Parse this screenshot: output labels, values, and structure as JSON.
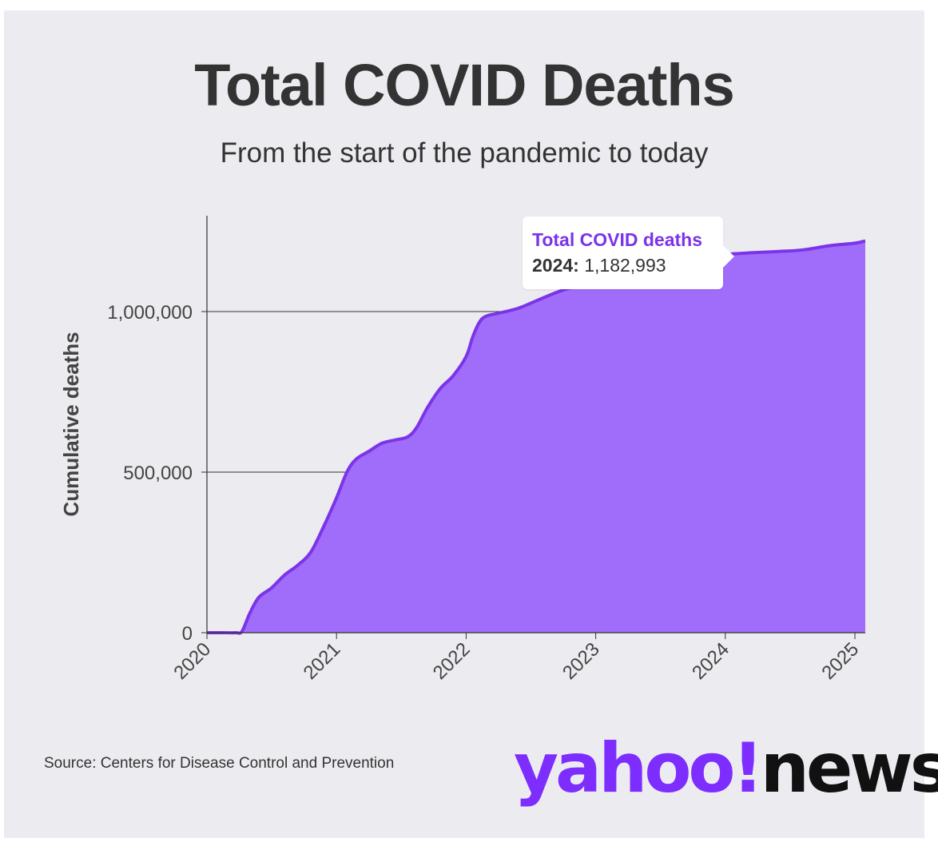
{
  "header": {
    "title": "Total COVID Deaths",
    "subtitle": "From the start of the pandemic to today"
  },
  "tooltip": {
    "series": "Total COVID deaths",
    "year": "2024:",
    "value": "1,182,993"
  },
  "footer": {
    "source": "Source: Centers for Disease Control and Prevention",
    "logo_yahoo": "yahoo!",
    "logo_news": "news"
  },
  "colors": {
    "fill": "#a06cfa",
    "line": "#7c34e8",
    "background": "#ececf0",
    "text": "#333333"
  },
  "chart_data": {
    "type": "area",
    "title": "Total COVID Deaths",
    "subtitle": "From the start of the pandemic to today",
    "xlabel": "",
    "ylabel": "Cumulative deaths",
    "xlim": [
      2020,
      2025
    ],
    "ylim": [
      0,
      1300000
    ],
    "yticks": [
      0,
      500000,
      1000000
    ],
    "ytick_labels": [
      "0",
      "500,000",
      "1,000,000"
    ],
    "xticks": [
      2020,
      2021,
      2022,
      2023,
      2024,
      2025
    ],
    "xtick_labels": [
      "2020",
      "2021",
      "2022",
      "2023",
      "2024",
      "2025"
    ],
    "grid": "horizontal",
    "series": [
      {
        "name": "Total COVID deaths",
        "x": [
          2020.0,
          2020.12,
          2020.22,
          2020.27,
          2020.33,
          2020.4,
          2020.5,
          2020.6,
          2020.7,
          2020.8,
          2020.9,
          2021.0,
          2021.08,
          2021.15,
          2021.25,
          2021.35,
          2021.45,
          2021.55,
          2021.62,
          2021.7,
          2021.8,
          2021.9,
          2022.0,
          2022.05,
          2022.1,
          2022.15,
          2022.25,
          2022.4,
          2022.55,
          2022.7,
          2022.85,
          2023.0,
          2023.2,
          2023.4,
          2023.6,
          2023.8,
          2024.0,
          2024.2,
          2024.4,
          2024.6,
          2024.8,
          2025.0,
          2025.08
        ],
        "values": [
          0,
          0,
          0,
          4000,
          60000,
          110000,
          140000,
          180000,
          210000,
          250000,
          330000,
          420000,
          500000,
          540000,
          565000,
          590000,
          600000,
          610000,
          640000,
          700000,
          760000,
          800000,
          860000,
          920000,
          965000,
          985000,
          995000,
          1010000,
          1035000,
          1060000,
          1080000,
          1100000,
          1125000,
          1145000,
          1160000,
          1170000,
          1178000,
          1183000,
          1187000,
          1192000,
          1205000,
          1213000,
          1220000
        ]
      }
    ]
  }
}
